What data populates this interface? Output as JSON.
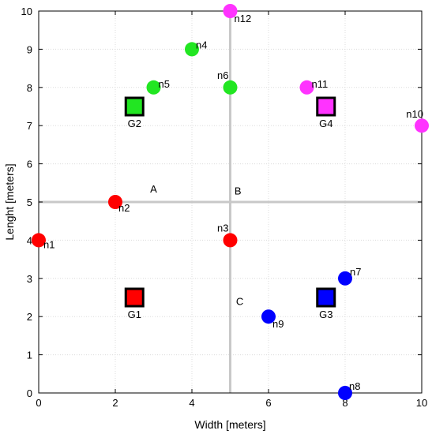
{
  "chart_data": {
    "type": "scatter",
    "title": "",
    "xlabel": "Width [meters]",
    "ylabel": "Lenght [meters]",
    "xlim": [
      0,
      10
    ],
    "ylim": [
      0,
      10
    ],
    "xticks": [
      "0",
      "2",
      "4",
      "6",
      "8",
      "10"
    ],
    "yticks": [
      "0",
      "1",
      "2",
      "3",
      "4",
      "5",
      "6",
      "7",
      "8",
      "9",
      "10"
    ],
    "grid": "dotted",
    "colors": {
      "red": "#ff0000",
      "green": "#22e622",
      "blue": "#0000ff",
      "magenta": "#ff33ff",
      "divider": "#c8c8c8",
      "grid": "#dcdcdc"
    },
    "dividers": [
      {
        "orientation": "vertical",
        "x": 5,
        "y_from": 0,
        "y_to": 10
      },
      {
        "orientation": "horizontal",
        "y": 5,
        "x_from": 0,
        "x_to": 10
      }
    ],
    "area_labels": [
      {
        "text": "A",
        "x": 3,
        "y": 5.25
      },
      {
        "text": "B",
        "x": 5.2,
        "y": 5.2
      },
      {
        "text": "C",
        "x": 5.25,
        "y": 2.3
      }
    ],
    "nodes": [
      {
        "label": "n1",
        "x": 0,
        "y": 4,
        "color": "red"
      },
      {
        "label": "n2",
        "x": 2,
        "y": 5,
        "color": "red"
      },
      {
        "label": "n3",
        "x": 5,
        "y": 4,
        "color": "red"
      },
      {
        "label": "n4",
        "x": 4,
        "y": 9,
        "color": "green"
      },
      {
        "label": "n5",
        "x": 3,
        "y": 8,
        "color": "green"
      },
      {
        "label": "n6",
        "x": 5,
        "y": 8,
        "color": "green"
      },
      {
        "label": "n7",
        "x": 8,
        "y": 3,
        "color": "blue"
      },
      {
        "label": "n8",
        "x": 8,
        "y": 0,
        "color": "blue"
      },
      {
        "label": "n9",
        "x": 6,
        "y": 2,
        "color": "blue"
      },
      {
        "label": "n10",
        "x": 10,
        "y": 7,
        "color": "magenta"
      },
      {
        "label": "n11",
        "x": 7,
        "y": 8,
        "color": "magenta"
      },
      {
        "label": "n12",
        "x": 5,
        "y": 10,
        "color": "magenta"
      }
    ],
    "gateways": [
      {
        "label": "G1",
        "x": 2.5,
        "y": 2.5,
        "color": "red"
      },
      {
        "label": "G2",
        "x": 2.5,
        "y": 7.5,
        "color": "green"
      },
      {
        "label": "G3",
        "x": 7.5,
        "y": 2.5,
        "color": "blue"
      },
      {
        "label": "G4",
        "x": 7.5,
        "y": 7.5,
        "color": "magenta"
      }
    ]
  }
}
